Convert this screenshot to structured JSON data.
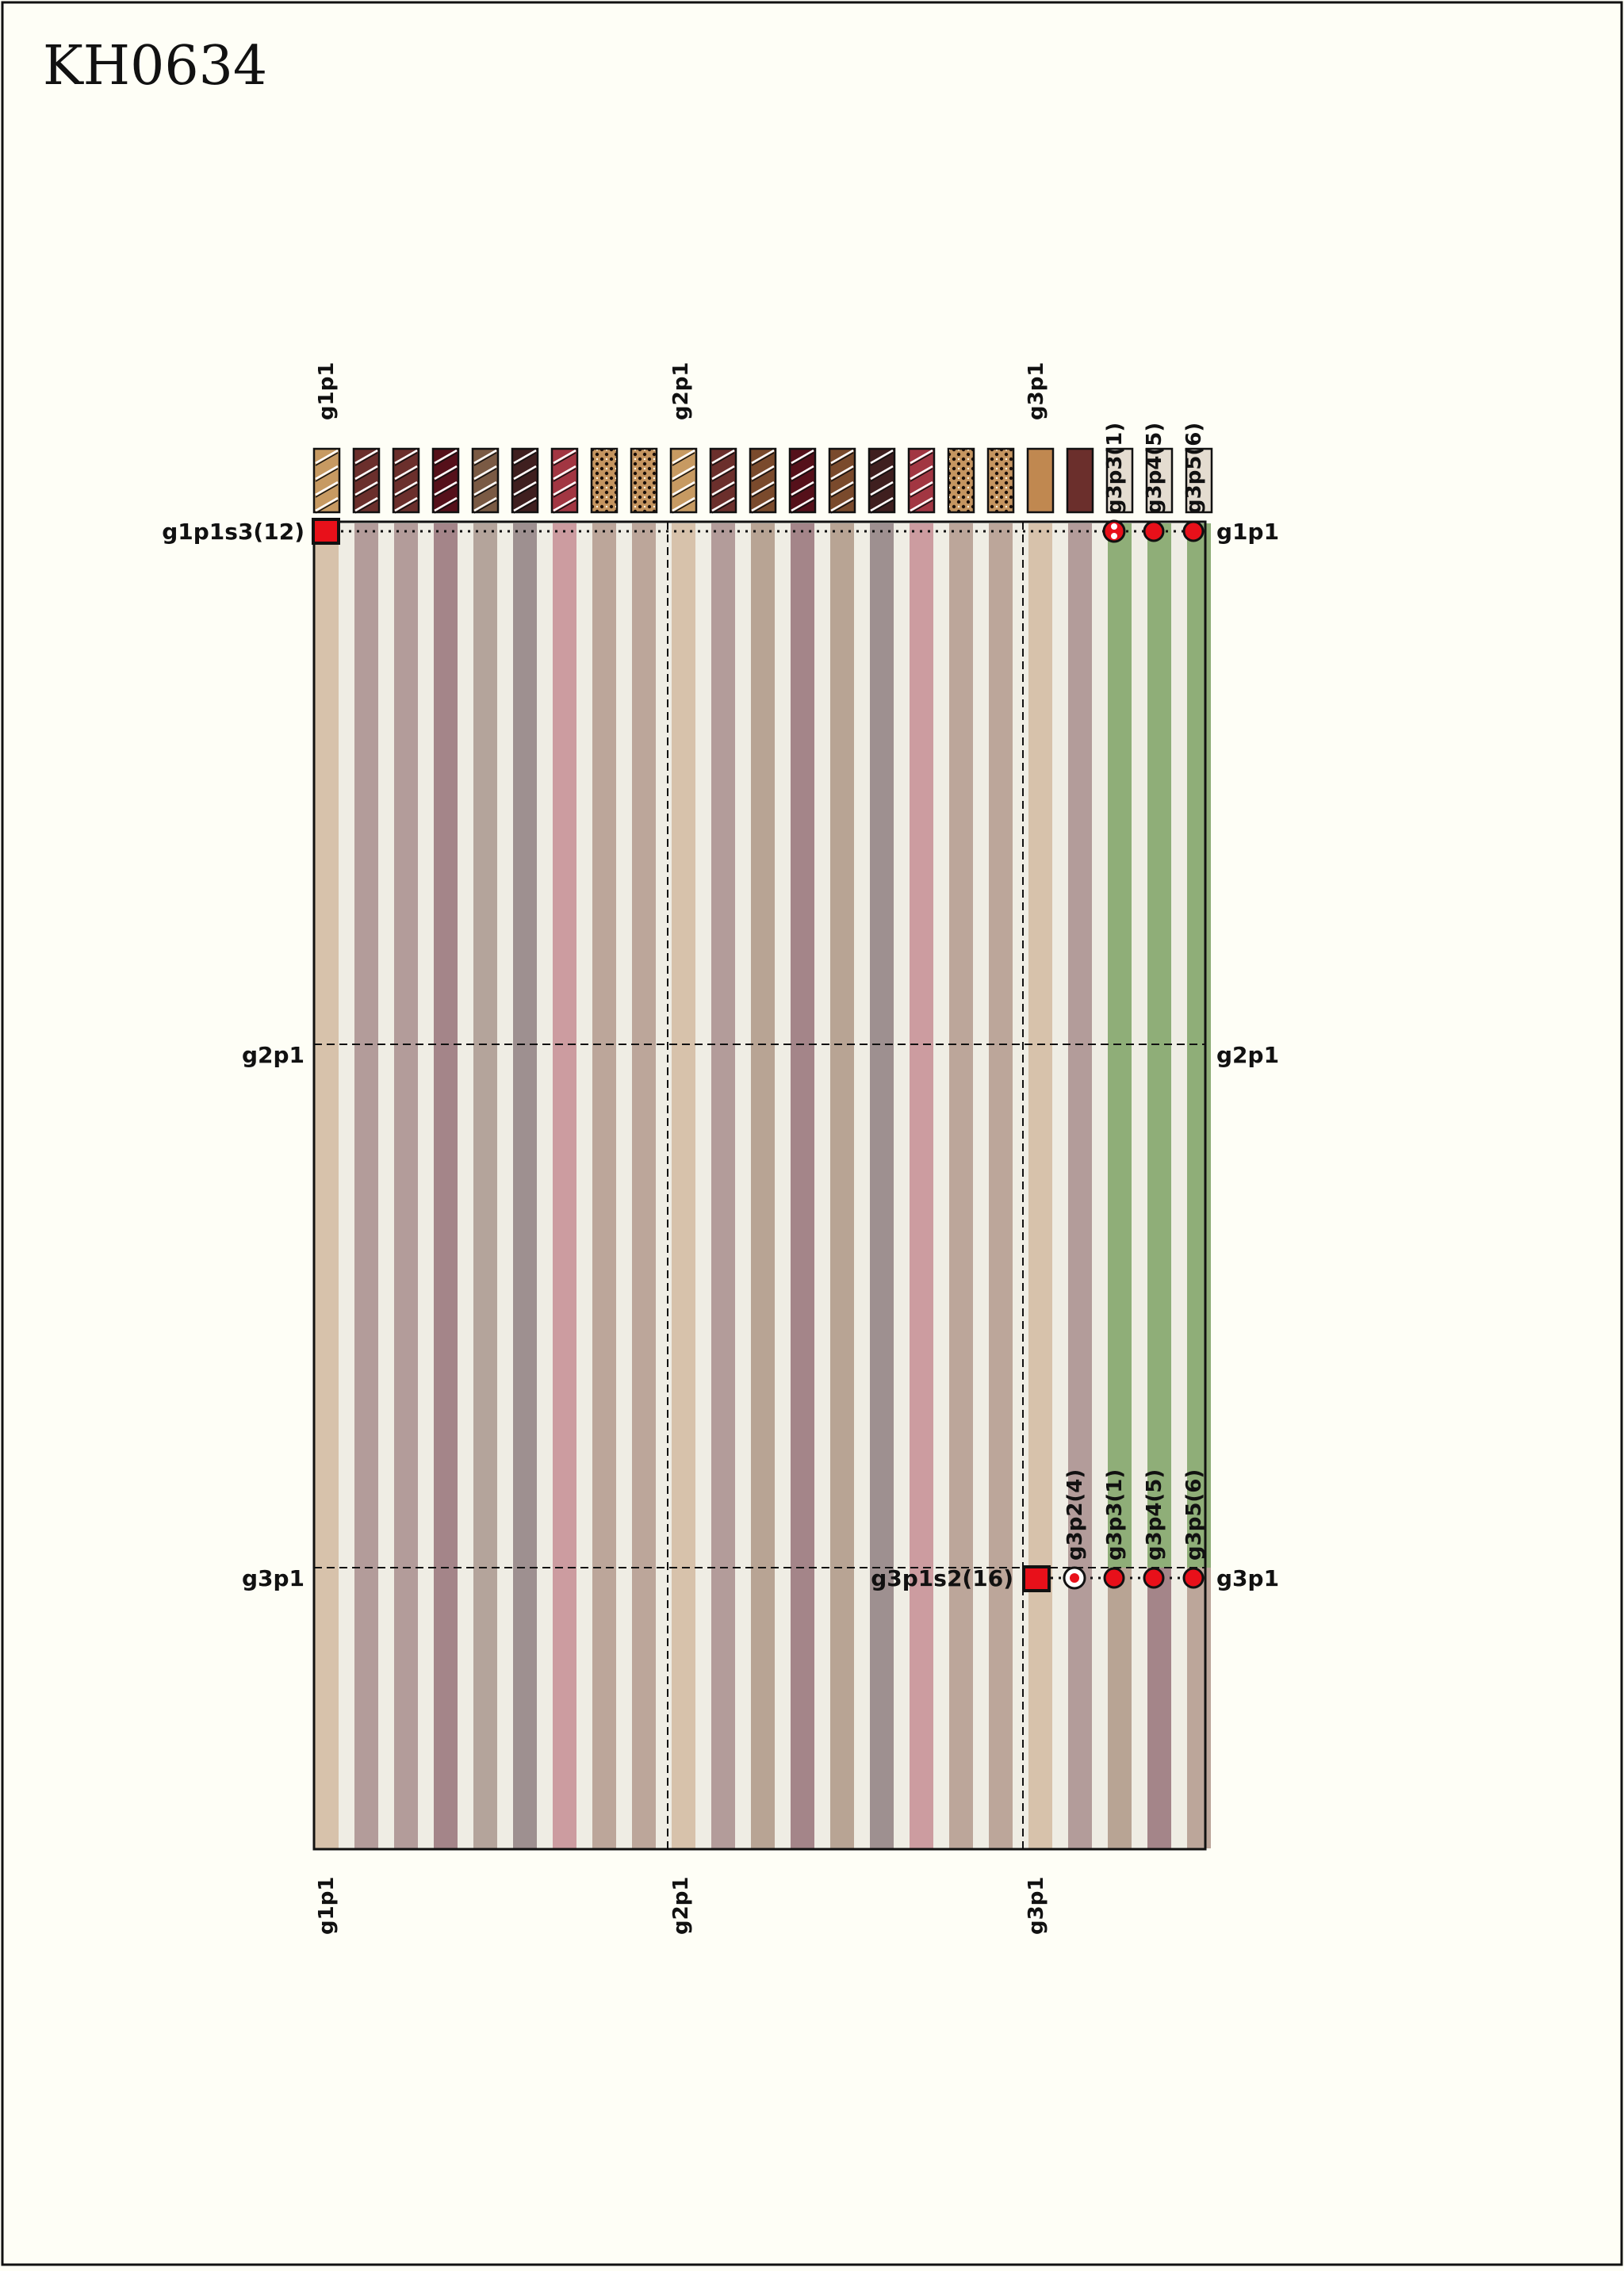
{
  "title": "KH0634",
  "palette": {
    "background": "#fefef6",
    "border": "#111111",
    "marker_red": "#e8101a",
    "stripe_light": "#efede4",
    "green": "#8fae78"
  },
  "top_labels": [
    "g1p1",
    "g2p1",
    "g3p1"
  ],
  "bottom_labels": [
    "g1p1",
    "g2p1",
    "g3p1"
  ],
  "left_labels": [
    "g1p1s3(12)",
    "g2p1",
    "g3p1"
  ],
  "right_labels": [
    "g1p1",
    "g2p1",
    "g3p1"
  ],
  "pendant_top_labels": [
    "g3p3(1)",
    "g3p4(5)",
    "g3p5(6)"
  ],
  "pendant_mid_labels": [
    "g3p2(4)",
    "g3p3(1)",
    "g3p4(5)",
    "g3p5(6)"
  ],
  "mid_left_label": "g3p1s2(16)",
  "cords": [
    {
      "color": "#d7c2ab",
      "swatch": "#c79a62",
      "pattern": "s-twist"
    },
    {
      "color": "#b39c9a",
      "swatch": "#6b2f2c",
      "pattern": "s-twist"
    },
    {
      "color": "#b39c9a",
      "swatch": "#6b2f2c",
      "pattern": "s-twist"
    },
    {
      "color": "#a48589",
      "swatch": "#55101a",
      "pattern": "s-twist"
    },
    {
      "color": "#b4a49b",
      "swatch": "#7a5a44",
      "pattern": "s-twist"
    },
    {
      "color": "#9e9090",
      "swatch": "#3f1f1f",
      "pattern": "s-twist"
    },
    {
      "color": "#cc9ca0",
      "swatch": "#a23642",
      "pattern": "s-twist"
    },
    {
      "color": "#bca69a",
      "swatch": "#c59560",
      "pattern": "mottled"
    },
    {
      "color": "#bca69a",
      "swatch": "#c59560",
      "pattern": "mottled"
    },
    {
      "color": "#d7c2ab",
      "swatch": "#c79a62",
      "pattern": "s-twist"
    },
    {
      "color": "#b39c9a",
      "swatch": "#6b2f2c",
      "pattern": "s-twist"
    },
    {
      "color": "#b8a494",
      "swatch": "#7a4a2c",
      "pattern": "s-twist"
    },
    {
      "color": "#a48589",
      "swatch": "#55101a",
      "pattern": "s-twist"
    },
    {
      "color": "#b8a494",
      "swatch": "#7a4a2c",
      "pattern": "s-twist"
    },
    {
      "color": "#9e9090",
      "swatch": "#3f1f1f",
      "pattern": "s-twist"
    },
    {
      "color": "#cc9ca0",
      "swatch": "#a23642",
      "pattern": "s-twist"
    },
    {
      "color": "#bca69a",
      "swatch": "#c59560",
      "pattern": "mottled"
    },
    {
      "color": "#bca69a",
      "swatch": "#c59560",
      "pattern": "mottled"
    },
    {
      "color": "#d7c2ab",
      "swatch": "#c08850",
      "pattern": "solid"
    },
    {
      "color": "#b39c9a",
      "swatch": "#6b2f2c",
      "pattern": "solid"
    },
    {
      "color": "#8fae78",
      "swatch": "#e4dcd0",
      "pattern": "solid",
      "lower": "#b8a494"
    },
    {
      "color": "#8fae78",
      "swatch": "#e4dcd0",
      "pattern": "solid",
      "lower": "#a48589"
    },
    {
      "color": "#8fae78",
      "swatch": "#e4dcd0",
      "pattern": "solid",
      "lower": "#bca69a"
    }
  ]
}
